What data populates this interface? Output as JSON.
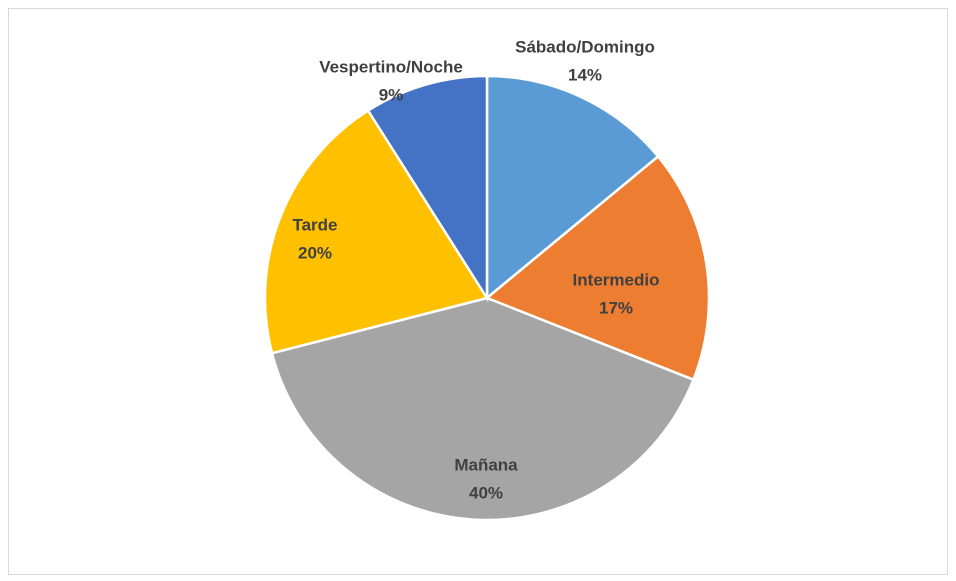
{
  "chart_data": {
    "type": "pie",
    "categories": [
      "Sábado/Domingo",
      "Intermedio",
      "Mañana",
      "Tarde",
      "Vespertino/Noche"
    ],
    "values": [
      14,
      17,
      40,
      20,
      9
    ],
    "value_labels": [
      "14%",
      "17%",
      "40%",
      "20%",
      "9%"
    ],
    "colors": [
      "#5b9bd5",
      "#ed7d31",
      "#a5a5a5",
      "#ffc000",
      "#4472c4"
    ]
  }
}
